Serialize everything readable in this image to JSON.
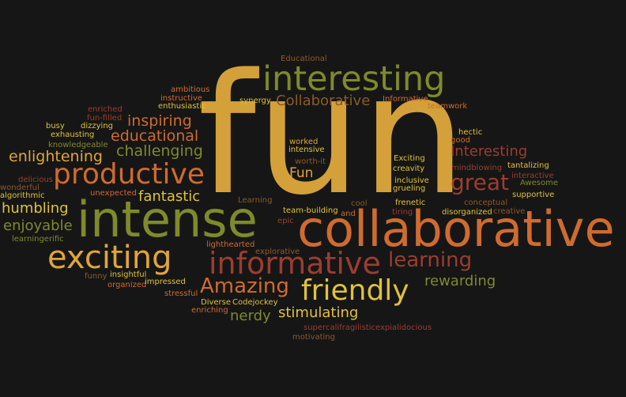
{
  "palette": [
    "#d4a03a",
    "#9b3d30",
    "#7f8a2a",
    "#cf6b2e",
    "#e0c23c",
    "#8a5a2a"
  ],
  "words": [
    {
      "text": "fun",
      "color": "#d4a03a"
    },
    {
      "text": "collaborative",
      "color": "#cf6b2e"
    },
    {
      "text": "intense",
      "color": "#7f8a2a"
    },
    {
      "text": "interesting",
      "color": "#7f8a2a"
    },
    {
      "text": "informative",
      "color": "#9b3d30"
    },
    {
      "text": "exciting",
      "color": "#e0a53a"
    },
    {
      "text": "productive",
      "color": "#cf6b2e"
    },
    {
      "text": "friendly",
      "color": "#e0c23c"
    },
    {
      "text": "learning",
      "color": "#9b3d30"
    },
    {
      "text": "Amazing",
      "color": "#cf6b2e"
    },
    {
      "text": "great",
      "color": "#9b3d30"
    },
    {
      "text": "Collaborative",
      "color": "#8a5a2a"
    },
    {
      "text": "rewarding",
      "color": "#7f8a2a"
    },
    {
      "text": "stimulating",
      "color": "#e0c23c"
    },
    {
      "text": "nerdy",
      "color": "#7f8a2a"
    },
    {
      "text": "challenging",
      "color": "#7f8a2a"
    },
    {
      "text": "educational",
      "color": "#cf6b2e"
    },
    {
      "text": "inspiring",
      "color": "#cf6b2e"
    },
    {
      "text": "enlightening",
      "color": "#e0a53a"
    },
    {
      "text": "humbling",
      "color": "#e0c23c"
    },
    {
      "text": "enjoyable",
      "color": "#7f8a2a"
    },
    {
      "text": "fantastic",
      "color": "#e0c23c"
    },
    {
      "text": "Interesting",
      "color": "#9b3d30"
    },
    {
      "text": "Fun",
      "color": "#e0a53a"
    },
    {
      "text": "Educational",
      "color": "#8a5a2a"
    },
    {
      "text": "ambitious",
      "color": "#cf6b2e"
    },
    {
      "text": "instructive",
      "color": "#cf6b2e"
    },
    {
      "text": "enthusiastic",
      "color": "#e0c23c"
    },
    {
      "text": "synergy",
      "color": "#e0c23c"
    },
    {
      "text": "Informative",
      "color": "#cf6b2e"
    },
    {
      "text": "teamwork",
      "color": "#cf6b2e"
    },
    {
      "text": "enriched",
      "color": "#9b3d30"
    },
    {
      "text": "fun-filled",
      "color": "#9b3d30"
    },
    {
      "text": "busy",
      "color": "#e0c23c"
    },
    {
      "text": "dizzying",
      "color": "#e0c23c"
    },
    {
      "text": "exhausting",
      "color": "#e0c23c"
    },
    {
      "text": "knowledgeable",
      "color": "#7f8a2a"
    },
    {
      "text": "worked",
      "color": "#e0a53a"
    },
    {
      "text": "intensive",
      "color": "#e0c23c"
    },
    {
      "text": "hectic",
      "color": "#e0c23c"
    },
    {
      "text": "good",
      "color": "#cf6b2e"
    },
    {
      "text": "worth-it",
      "color": "#8a5a2a"
    },
    {
      "text": "Exciting",
      "color": "#e0c23c"
    },
    {
      "text": "creavity",
      "color": "#e0c23c"
    },
    {
      "text": "tantalizing",
      "color": "#e0c23c"
    },
    {
      "text": "mindblowing",
      "color": "#9b3d30"
    },
    {
      "text": "interactive",
      "color": "#9b3d30"
    },
    {
      "text": "Awesome",
      "color": "#7f8a2a"
    },
    {
      "text": "inclusive",
      "color": "#e0c23c"
    },
    {
      "text": "grueling",
      "color": "#e0c23c"
    },
    {
      "text": "supportive",
      "color": "#e0c23c"
    },
    {
      "text": "delicious",
      "color": "#9b3d30"
    },
    {
      "text": "wonderful",
      "color": "#8a5a2a"
    },
    {
      "text": "algorithmic",
      "color": "#e0c23c"
    },
    {
      "text": "unexpected",
      "color": "#cf6b2e"
    },
    {
      "text": "Learning",
      "color": "#8a5a2a"
    },
    {
      "text": "cool",
      "color": "#8a5a2a"
    },
    {
      "text": "frenetic",
      "color": "#e0c23c"
    },
    {
      "text": "conceptual",
      "color": "#8a5a2a"
    },
    {
      "text": "team-building",
      "color": "#e0c23c"
    },
    {
      "text": "and",
      "color": "#cf6b2e"
    },
    {
      "text": "tiring",
      "color": "#9b3d30"
    },
    {
      "text": "disorganized",
      "color": "#e0c23c"
    },
    {
      "text": "creative",
      "color": "#8a5a2a"
    },
    {
      "text": "epic",
      "color": "#9b3d30"
    },
    {
      "text": "learningerific",
      "color": "#7f8a2a"
    },
    {
      "text": "lighthearted",
      "color": "#cf6b2e"
    },
    {
      "text": "explorative",
      "color": "#8a5a2a"
    },
    {
      "text": "funny",
      "color": "#8a5a2a"
    },
    {
      "text": "insightful",
      "color": "#e0c23c"
    },
    {
      "text": "organized",
      "color": "#cf6b2e"
    },
    {
      "text": "impressed",
      "color": "#e0c23c"
    },
    {
      "text": "stressful",
      "color": "#cf6b2e"
    },
    {
      "text": "Diverse",
      "color": "#e0c23c"
    },
    {
      "text": "Codejockey",
      "color": "#e0c23c"
    },
    {
      "text": "enriching",
      "color": "#cf6b2e"
    },
    {
      "text": "supercalifragilisticexpialidocious",
      "color": "#9b3d30"
    },
    {
      "text": "motivating",
      "color": "#8a5a2a"
    }
  ]
}
